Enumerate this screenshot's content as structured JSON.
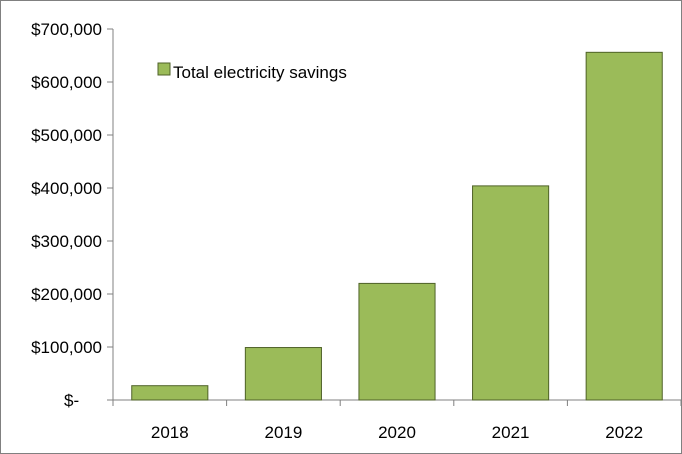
{
  "chart_data": {
    "type": "bar",
    "categories": [
      "2018",
      "2019",
      "2020",
      "2021",
      "2022"
    ],
    "series": [
      {
        "name": "Total electricity savings",
        "values": [
          27000,
          99000,
          220000,
          404000,
          656000
        ]
      }
    ],
    "ylim": [
      0,
      700000
    ],
    "yticks": [
      0,
      100000,
      200000,
      300000,
      400000,
      500000,
      600000,
      700000
    ],
    "ytick_labels": [
      "$-",
      "$100,000",
      "$200,000",
      "$300,000",
      "$400,000",
      "$500,000",
      "$600,000",
      "$700,000"
    ],
    "grid": false,
    "legend_position": "top-left",
    "colors": {
      "bar_fill": "#9bbb59",
      "bar_stroke": "#4f6228",
      "axis": "#808080",
      "frame": "#808080"
    }
  }
}
